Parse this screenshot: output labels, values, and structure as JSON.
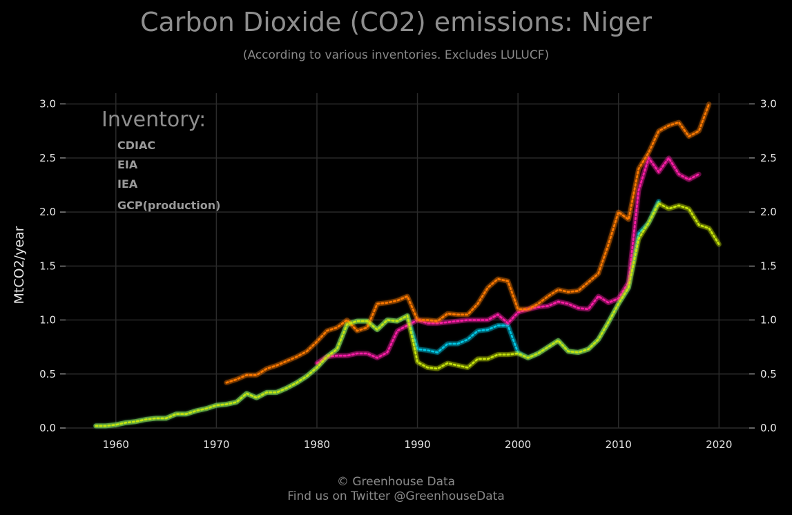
{
  "chart_data": {
    "type": "line",
    "title": "Carbon Dioxide (CO2) emissions: Niger",
    "subtitle": "(According to various inventories. Excludes LULUCF)",
    "xlabel": "",
    "ylabel": "MtCO2/year",
    "xlim": [
      1955,
      2023
    ],
    "ylim": [
      0,
      3.1
    ],
    "xticks": [
      1960,
      1970,
      1980,
      1990,
      2000,
      2010,
      2020
    ],
    "yticks": [
      0.0,
      0.5,
      1.0,
      1.5,
      2.0,
      2.5,
      3.0
    ],
    "ytick_labels": [
      "0.0",
      "0.5",
      "1.0",
      "1.5",
      "2.0",
      "2.5",
      "3.0"
    ],
    "grid": true,
    "legend": {
      "title": "Inventory:",
      "position": "top-left"
    },
    "series": [
      {
        "name": "CDIAC",
        "color": "#00c8e6",
        "x": [
          1958,
          1959,
          1960,
          1961,
          1962,
          1963,
          1964,
          1965,
          1966,
          1967,
          1968,
          1969,
          1970,
          1971,
          1972,
          1973,
          1974,
          1975,
          1976,
          1977,
          1978,
          1979,
          1980,
          1981,
          1982,
          1983,
          1984,
          1985,
          1986,
          1987,
          1988,
          1989,
          1990,
          1991,
          1992,
          1993,
          1994,
          1995,
          1996,
          1997,
          1998,
          1999,
          2000,
          2001,
          2002,
          2003,
          2004,
          2005,
          2006,
          2007,
          2008,
          2009,
          2010,
          2011,
          2012,
          2013,
          2014
        ],
        "y": [
          0.02,
          0.02,
          0.03,
          0.05,
          0.06,
          0.08,
          0.09,
          0.09,
          0.13,
          0.13,
          0.16,
          0.18,
          0.21,
          0.22,
          0.24,
          0.32,
          0.28,
          0.33,
          0.33,
          0.37,
          0.42,
          0.48,
          0.56,
          0.66,
          0.73,
          0.96,
          0.99,
          0.99,
          0.91,
          1.0,
          0.99,
          1.04,
          0.73,
          0.72,
          0.7,
          0.78,
          0.78,
          0.82,
          0.9,
          0.91,
          0.95,
          0.95,
          0.7,
          0.65,
          0.69,
          0.75,
          0.81,
          0.71,
          0.7,
          0.73,
          0.82,
          0.98,
          1.15,
          1.3,
          1.8,
          1.9,
          2.1
        ]
      },
      {
        "name": "EIA",
        "color": "#ff1fa8",
        "x": [
          1980,
          1981,
          1982,
          1983,
          1984,
          1985,
          1986,
          1987,
          1988,
          1989,
          1990,
          1991,
          1992,
          1993,
          1994,
          1995,
          1996,
          1997,
          1998,
          1999,
          2000,
          2001,
          2002,
          2003,
          2004,
          2005,
          2006,
          2007,
          2008,
          2009,
          2010,
          2011,
          2012,
          2013,
          2014,
          2015,
          2016,
          2017,
          2018
        ],
        "y": [
          0.6,
          0.66,
          0.67,
          0.67,
          0.69,
          0.69,
          0.65,
          0.7,
          0.9,
          0.95,
          1.0,
          0.97,
          0.97,
          0.98,
          0.99,
          1.0,
          1.0,
          1.0,
          1.05,
          0.97,
          1.07,
          1.1,
          1.12,
          1.13,
          1.17,
          1.15,
          1.11,
          1.1,
          1.22,
          1.16,
          1.2,
          1.35,
          2.2,
          2.5,
          2.37,
          2.5,
          2.35,
          2.3,
          2.35
        ]
      },
      {
        "name": "IEA",
        "color": "#ff7a00",
        "x": [
          1971,
          1972,
          1973,
          1974,
          1975,
          1976,
          1977,
          1978,
          1979,
          1980,
          1981,
          1982,
          1983,
          1984,
          1985,
          1986,
          1987,
          1988,
          1989,
          1990,
          1991,
          1992,
          1993,
          1994,
          1995,
          1996,
          1997,
          1998,
          1999,
          2000,
          2001,
          2002,
          2003,
          2004,
          2005,
          2006,
          2007,
          2008,
          2009,
          2010,
          2011,
          2012,
          2013,
          2014,
          2015,
          2016,
          2017,
          2018,
          2019
        ],
        "y": [
          0.42,
          0.45,
          0.49,
          0.49,
          0.55,
          0.58,
          0.62,
          0.66,
          0.71,
          0.8,
          0.9,
          0.93,
          1.0,
          0.9,
          0.93,
          1.15,
          1.16,
          1.18,
          1.22,
          1.0,
          1.0,
          0.99,
          1.06,
          1.05,
          1.05,
          1.15,
          1.3,
          1.38,
          1.36,
          1.1,
          1.1,
          1.15,
          1.22,
          1.28,
          1.26,
          1.27,
          1.35,
          1.43,
          1.7,
          2.0,
          1.93,
          2.4,
          2.55,
          2.75,
          2.8,
          2.83,
          2.7,
          2.75,
          3.0
        ]
      },
      {
        "name": "GCP(production)",
        "color": "#c8e60a",
        "x": [
          1958,
          1959,
          1960,
          1961,
          1962,
          1963,
          1964,
          1965,
          1966,
          1967,
          1968,
          1969,
          1970,
          1971,
          1972,
          1973,
          1974,
          1975,
          1976,
          1977,
          1978,
          1979,
          1980,
          1981,
          1982,
          1983,
          1984,
          1985,
          1986,
          1987,
          1988,
          1989,
          1990,
          1991,
          1992,
          1993,
          1994,
          1995,
          1996,
          1997,
          1998,
          1999,
          2000,
          2001,
          2002,
          2003,
          2004,
          2005,
          2006,
          2007,
          2008,
          2009,
          2010,
          2011,
          2012,
          2013,
          2014,
          2015,
          2016,
          2017,
          2018,
          2019,
          2020
        ],
        "y": [
          0.02,
          0.02,
          0.03,
          0.05,
          0.06,
          0.08,
          0.09,
          0.09,
          0.13,
          0.13,
          0.16,
          0.18,
          0.21,
          0.22,
          0.24,
          0.32,
          0.28,
          0.33,
          0.33,
          0.37,
          0.42,
          0.48,
          0.56,
          0.66,
          0.73,
          0.96,
          0.99,
          0.99,
          0.91,
          1.0,
          0.99,
          1.04,
          0.61,
          0.56,
          0.55,
          0.6,
          0.58,
          0.56,
          0.64,
          0.64,
          0.68,
          0.68,
          0.69,
          0.65,
          0.69,
          0.75,
          0.81,
          0.71,
          0.7,
          0.73,
          0.82,
          0.98,
          1.15,
          1.3,
          1.75,
          1.9,
          2.08,
          2.03,
          2.06,
          2.03,
          1.88,
          1.85,
          1.7
        ]
      }
    ]
  },
  "footer": {
    "line1": "© Greenhouse Data",
    "line2": "Find us on Twitter @GreenhouseData"
  }
}
